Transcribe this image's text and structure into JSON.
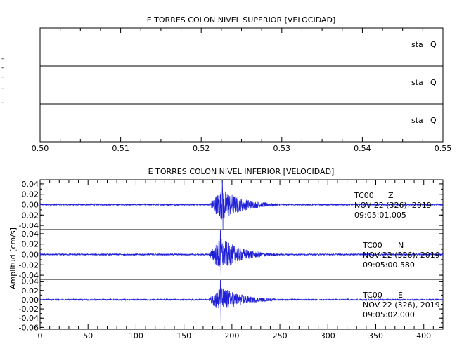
{
  "upper_panel": {
    "title": "E TORRES COLON NIVEL SUPERIOR [VELOCIDAD]",
    "y_tick_marks": [
      "-",
      "-",
      "-",
      "-",
      "-"
    ],
    "x_ticks": [
      "0.50",
      "0.51",
      "0.52",
      "0.53",
      "0.54",
      "0.55"
    ],
    "xlim": [
      0.5,
      0.55
    ],
    "channels": [
      {
        "station": "sta",
        "code": "Q"
      },
      {
        "station": "sta",
        "code": "Q"
      },
      {
        "station": "sta",
        "code": "Q"
      }
    ]
  },
  "lower_panel": {
    "title": "E TORRES COLON NIVEL INFERIOR [VELOCIDAD]",
    "ylabel": "Amplitud [cm/s]",
    "x_ticks": [
      "0",
      "50",
      "100",
      "150",
      "200",
      "250",
      "300",
      "350",
      "400"
    ],
    "xlim": [
      0,
      420
    ],
    "trace_color": "#1f1fd6",
    "channels": [
      {
        "station": "TC00",
        "component": "Z",
        "date": "NOV 22 (326), 2019",
        "time": "09:05:01.005",
        "y_ticks": [
          "0.04",
          "0.02",
          "0.00",
          "-0.02",
          "-0.04"
        ],
        "ylim": [
          -0.048,
          0.048
        ]
      },
      {
        "station": "TC00",
        "component": "N",
        "date": "NOV 22 (326), 2019",
        "time": "09:05:00.580",
        "y_ticks": [
          "0.04",
          "0.02",
          "0.00",
          "-0.02",
          "-0.04"
        ],
        "ylim": [
          -0.048,
          0.048
        ]
      },
      {
        "station": "TC00",
        "component": "E",
        "date": "NOV 22 (326), 2019",
        "time": "09:05:02.000",
        "y_ticks": [
          "0.04",
          "0.02",
          "0.00",
          "-0.02",
          "-0.04",
          "-0.06"
        ],
        "ylim": [
          -0.064,
          0.044
        ]
      }
    ]
  },
  "chart_data": [
    {
      "type": "line",
      "title": "E TORRES COLON NIVEL SUPERIOR [VELOCIDAD]",
      "xlim": [
        0.5,
        0.55
      ],
      "x_ticks": [
        0.5,
        0.51,
        0.52,
        0.53,
        0.54,
        0.55
      ],
      "series": [],
      "grid": false
    },
    {
      "type": "line",
      "title": "E TORRES COLON NIVEL INFERIOR [VELOCIDAD]",
      "ylabel": "Amplitud [cm/s]",
      "xlim": [
        0,
        420
      ],
      "x_ticks": [
        0,
        50,
        100,
        150,
        200,
        250,
        300,
        350,
        400
      ],
      "grid": false,
      "series": [
        {
          "name": "TC00 Z",
          "onset_s": 175,
          "peak_s": 190,
          "peak_amplitude": 0.045,
          "min_amplitude": -0.047,
          "noise_amplitude": 0.0015,
          "coda_end_s": 300
        },
        {
          "name": "TC00 N",
          "onset_s": 175,
          "peak_s": 188,
          "peak_amplitude": 0.047,
          "min_amplitude": -0.047,
          "noise_amplitude": 0.0015,
          "coda_end_s": 300
        },
        {
          "name": "TC00 E",
          "onset_s": 175,
          "peak_s": 188,
          "peak_amplitude": 0.042,
          "min_amplitude": -0.062,
          "noise_amplitude": 0.0015,
          "coda_end_s": 300
        }
      ]
    }
  ]
}
